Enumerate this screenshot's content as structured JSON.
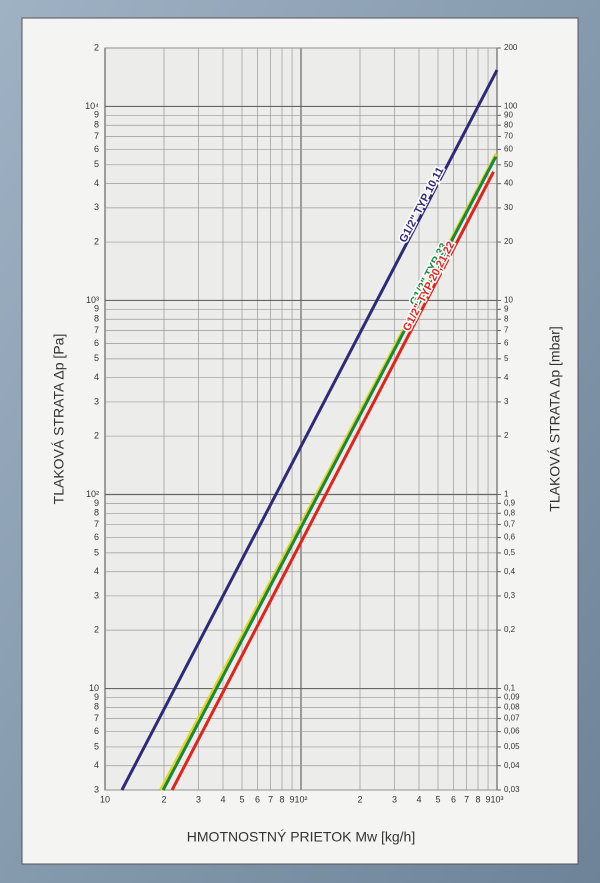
{
  "chart_data": {
    "type": "line",
    "xlabel": "HMOTNOSTNÝ PRIETOK  Mw [kg/h]",
    "ylabel": "TLAKOVÁ STRATA Δp  [Pa]",
    "y2label": "TLAKOVÁ STRATA Δp  [mbar]",
    "xscale": "log",
    "yscale": "log",
    "grid": true,
    "xlim": [
      10,
      1000
    ],
    "ylim": [
      3,
      20000
    ],
    "y2lim": [
      0.03,
      200
    ],
    "xticks": [
      10,
      {
        "value": 20,
        "label": "2"
      },
      {
        "value": 30,
        "label": "3"
      },
      {
        "value": 40,
        "label": "4"
      },
      {
        "value": 50,
        "label": "5"
      },
      {
        "value": 60,
        "label": "6"
      },
      {
        "value": 70,
        "label": "7"
      },
      {
        "value": 80,
        "label": "8"
      },
      {
        "value": 90,
        "label": "9"
      },
      {
        "value": 100,
        "label": "10²"
      },
      {
        "value": 200,
        "label": "2"
      },
      {
        "value": 300,
        "label": "3"
      },
      {
        "value": 400,
        "label": "4"
      },
      {
        "value": 500,
        "label": "5"
      },
      {
        "value": 600,
        "label": "6"
      },
      {
        "value": 700,
        "label": "7"
      },
      {
        "value": 800,
        "label": "8"
      },
      {
        "value": 900,
        "label": "9"
      },
      {
        "value": 1000,
        "label": "10³"
      }
    ],
    "yticks": [
      3,
      4,
      5,
      6,
      7,
      8,
      9,
      10,
      {
        "value": 20,
        "label": "2"
      },
      {
        "value": 30,
        "label": "3"
      },
      {
        "value": 40,
        "label": "4"
      },
      {
        "value": 50,
        "label": "5"
      },
      {
        "value": 60,
        "label": "6"
      },
      {
        "value": 70,
        "label": "7"
      },
      {
        "value": 80,
        "label": "8"
      },
      {
        "value": 90,
        "label": "9"
      },
      {
        "value": 100,
        "label": "10²"
      },
      {
        "value": 200,
        "label": "2"
      },
      {
        "value": 300,
        "label": "3"
      },
      {
        "value": 400,
        "label": "4"
      },
      {
        "value": 500,
        "label": "5"
      },
      {
        "value": 600,
        "label": "6"
      },
      {
        "value": 700,
        "label": "7"
      },
      {
        "value": 800,
        "label": "8"
      },
      {
        "value": 900,
        "label": "9"
      },
      {
        "value": 1000,
        "label": "10³"
      },
      {
        "value": 2000,
        "label": "2"
      },
      {
        "value": 3000,
        "label": "3"
      },
      {
        "value": 4000,
        "label": "4"
      },
      {
        "value": 5000,
        "label": "5"
      },
      {
        "value": 6000,
        "label": "6"
      },
      {
        "value": 7000,
        "label": "7"
      },
      {
        "value": 8000,
        "label": "8"
      },
      {
        "value": 9000,
        "label": "9"
      },
      {
        "value": 10000,
        "label": "10⁴"
      },
      {
        "value": 20000,
        "label": "2"
      }
    ],
    "y2ticks": [
      {
        "value": 0.03,
        "label": "0,03"
      },
      {
        "value": 0.04,
        "label": "0,04"
      },
      {
        "value": 0.05,
        "label": "0,05"
      },
      {
        "value": 0.06,
        "label": "0,06"
      },
      {
        "value": 0.07,
        "label": "0,07"
      },
      {
        "value": 0.08,
        "label": "0,08"
      },
      {
        "value": 0.09,
        "label": "0,09"
      },
      {
        "value": 0.1,
        "label": "0,1"
      },
      {
        "value": 0.2,
        "label": "0,2"
      },
      {
        "value": 0.3,
        "label": "0,3"
      },
      {
        "value": 0.4,
        "label": "0,4"
      },
      {
        "value": 0.5,
        "label": "0,5"
      },
      {
        "value": 0.6,
        "label": "0,6"
      },
      {
        "value": 0.7,
        "label": "0,7"
      },
      {
        "value": 0.8,
        "label": "0,8"
      },
      {
        "value": 0.9,
        "label": "0,9"
      },
      1,
      2,
      3,
      4,
      5,
      6,
      7,
      8,
      9,
      10,
      20,
      30,
      40,
      50,
      60,
      70,
      80,
      90,
      100,
      200
    ],
    "series": [
      {
        "name": "G1/2\" TYP 10,11",
        "color": "#2e2a7a",
        "x": [
          12.2,
          1000
        ],
        "values": [
          3,
          15400
        ]
      },
      {
        "color": "#e8d21a",
        "x": [
          19.2,
          990
        ],
        "values": [
          3,
          5700
        ]
      },
      {
        "name": "G1/2\" TYP 33",
        "color": "#138a3c",
        "x": [
          19.8,
          985
        ],
        "values": [
          3,
          5500
        ]
      },
      {
        "name": "G1/2\" TYP 20,21,22",
        "color": "#e2231a",
        "x": [
          22,
          960
        ],
        "values": [
          3,
          4600
        ]
      }
    ]
  }
}
